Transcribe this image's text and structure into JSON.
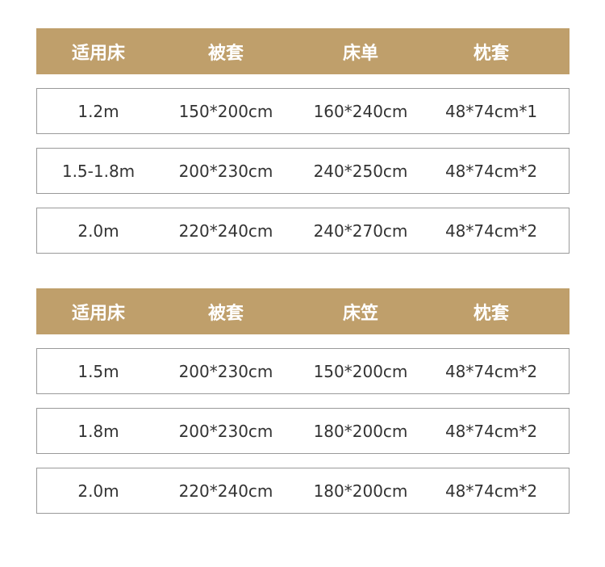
{
  "tables": [
    {
      "header": [
        "适用床",
        "被套",
        "床单",
        "枕套"
      ],
      "rows": [
        [
          "1.2m",
          "150*200cm",
          "160*240cm",
          "48*74cm*1"
        ],
        [
          "1.5-1.8m",
          "200*230cm",
          "240*250cm",
          "48*74cm*2"
        ],
        [
          "2.0m",
          "220*240cm",
          "240*270cm",
          "48*74cm*2"
        ]
      ]
    },
    {
      "header": [
        "适用床",
        "被套",
        "床笠",
        "枕套"
      ],
      "rows": [
        [
          "1.5m",
          "200*230cm",
          "150*200cm",
          "48*74cm*2"
        ],
        [
          "1.8m",
          "200*230cm",
          "180*200cm",
          "48*74cm*2"
        ],
        [
          "2.0m",
          "220*240cm",
          "180*200cm",
          "48*74cm*2"
        ]
      ]
    }
  ]
}
